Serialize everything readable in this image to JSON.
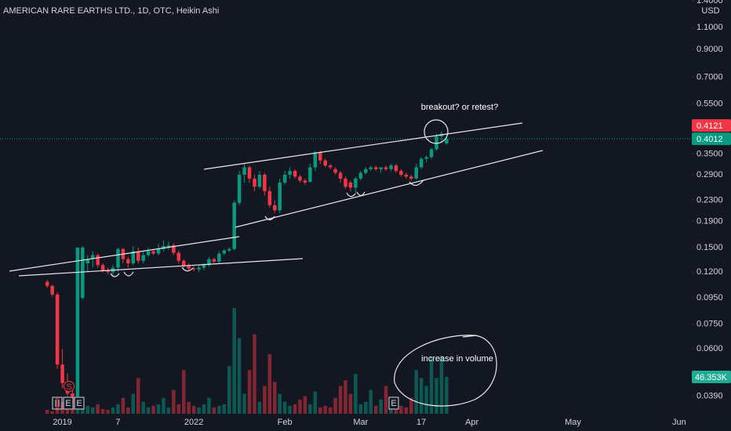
{
  "chart_data": {
    "type": "candlestick",
    "title": "AMERICAN RARE EARTHS LTD., 1D, OTC, Heikin Ashi",
    "currency": "USD",
    "log_scale": true,
    "grid": false,
    "up_color": "#089981",
    "down_color": "#f23645",
    "categories": [
      null,
      null,
      null,
      "2019",
      null,
      null,
      null,
      null,
      null,
      null,
      null,
      null,
      null,
      null,
      "7",
      null,
      null,
      null,
      null,
      null,
      null,
      null,
      null,
      null,
      null,
      null,
      null,
      null,
      null,
      "2022",
      null,
      null,
      null,
      null,
      null,
      null,
      null,
      null,
      null,
      null,
      null,
      null,
      null,
      null,
      null,
      null,
      null,
      "Feb",
      null,
      null,
      null,
      null,
      null,
      null,
      null,
      null,
      null,
      null,
      null,
      null,
      null,
      null,
      "Mar",
      null,
      null,
      null,
      null,
      null,
      null,
      null,
      null,
      null,
      null,
      null,
      "17",
      null,
      null,
      null,
      null,
      null,
      null,
      null,
      null,
      null,
      "Apr",
      null,
      null,
      null,
      null,
      null,
      null,
      null,
      null,
      null,
      null,
      null,
      null,
      null,
      null,
      null,
      null,
      null,
      null,
      null,
      "May",
      null,
      null,
      null,
      null,
      null,
      null,
      null,
      null,
      null,
      null,
      null,
      null,
      null,
      null,
      null,
      null,
      null,
      null,
      null,
      null,
      "Jun",
      null,
      null
    ],
    "open": [
      0.11,
      0.106,
      0.098,
      0.052,
      0.044,
      0.04,
      0.039,
      0.095,
      0.13,
      0.135,
      0.14,
      0.128,
      0.122,
      0.12,
      0.125,
      0.148,
      0.135,
      0.13,
      0.145,
      0.133,
      0.14,
      0.145,
      0.142,
      0.148,
      0.15,
      0.153,
      0.143,
      0.133,
      0.127,
      0.124,
      0.123,
      0.125,
      0.128,
      0.135,
      0.132,
      0.142,
      0.146,
      0.148,
      0.225,
      0.29,
      0.31,
      0.28,
      0.26,
      0.29,
      0.25,
      0.22,
      0.21,
      0.27,
      0.29,
      0.3,
      0.285,
      0.275,
      0.272,
      0.31,
      0.355,
      0.33,
      0.315,
      0.305,
      0.295,
      0.28,
      0.27,
      0.258,
      0.28,
      0.295,
      0.305,
      0.31,
      0.305,
      0.31,
      0.305,
      0.315,
      0.3,
      0.29,
      0.285,
      0.28,
      0.31,
      0.335,
      0.34,
      0.365,
      0.41,
      0.385,
      null,
      null,
      null,
      null,
      null,
      null,
      null,
      null,
      null,
      null,
      null,
      null,
      null,
      null,
      null,
      null,
      null,
      null,
      null,
      null,
      null,
      null,
      null,
      null,
      null,
      null,
      null,
      null,
      null,
      null,
      null,
      null,
      null,
      null,
      null,
      null,
      null,
      null,
      null,
      null,
      null,
      null,
      null,
      null,
      null,
      null,
      null,
      null
    ],
    "high": [
      0.112,
      0.107,
      0.1,
      0.06,
      0.048,
      0.042,
      0.15,
      0.152,
      0.14,
      0.145,
      0.142,
      0.13,
      0.125,
      0.128,
      0.15,
      0.15,
      0.138,
      0.152,
      0.15,
      0.145,
      0.15,
      0.148,
      0.155,
      0.16,
      0.158,
      0.156,
      0.146,
      0.135,
      0.13,
      0.127,
      0.128,
      0.13,
      0.138,
      0.137,
      0.145,
      0.148,
      0.15,
      0.23,
      0.3,
      0.32,
      0.315,
      0.29,
      0.3,
      0.295,
      0.26,
      0.23,
      0.28,
      0.3,
      0.31,
      0.305,
      0.29,
      0.28,
      0.32,
      0.36,
      0.36,
      0.335,
      0.32,
      0.31,
      0.3,
      0.285,
      0.275,
      0.285,
      0.3,
      0.31,
      0.315,
      0.315,
      0.31,
      0.315,
      0.32,
      0.32,
      0.305,
      0.295,
      0.29,
      0.32,
      0.34,
      0.345,
      0.37,
      0.42,
      0.43,
      0.415,
      null,
      null,
      null,
      null,
      null,
      null,
      null,
      null,
      null,
      null,
      null,
      null,
      null,
      null,
      null,
      null,
      null,
      null,
      null,
      null,
      null,
      null,
      null,
      null,
      null,
      null,
      null,
      null,
      null,
      null,
      null,
      null,
      null,
      null,
      null,
      null,
      null,
      null,
      null,
      null,
      null,
      null,
      null,
      null,
      null,
      null,
      null,
      null
    ],
    "low": [
      0.104,
      0.096,
      0.05,
      0.042,
      0.039,
      0.037,
      0.037,
      0.094,
      0.12,
      0.125,
      0.125,
      0.12,
      0.118,
      0.115,
      0.12,
      0.13,
      0.125,
      0.128,
      0.13,
      0.13,
      0.138,
      0.14,
      0.14,
      0.145,
      0.147,
      0.14,
      0.13,
      0.125,
      0.122,
      0.121,
      0.12,
      0.122,
      0.126,
      0.13,
      0.13,
      0.14,
      0.144,
      0.146,
      0.22,
      0.27,
      0.27,
      0.25,
      0.255,
      0.24,
      0.215,
      0.205,
      0.205,
      0.265,
      0.28,
      0.28,
      0.27,
      0.265,
      0.27,
      0.3,
      0.32,
      0.31,
      0.305,
      0.29,
      0.27,
      0.255,
      0.25,
      0.245,
      0.275,
      0.29,
      0.3,
      0.3,
      0.295,
      0.3,
      0.3,
      0.295,
      0.285,
      0.28,
      0.275,
      0.278,
      0.305,
      0.325,
      0.335,
      0.36,
      0.39,
      0.38,
      null,
      null,
      null,
      null,
      null,
      null,
      null,
      null,
      null,
      null,
      null,
      null,
      null,
      null,
      null,
      null,
      null,
      null,
      null,
      null,
      null,
      null,
      null,
      null,
      null,
      null,
      null,
      null,
      null,
      null,
      null,
      null,
      null,
      null,
      null,
      null,
      null,
      null,
      null,
      null,
      null,
      null,
      null,
      null,
      null,
      null,
      null,
      null
    ],
    "close": [
      0.106,
      0.098,
      0.052,
      0.044,
      0.04,
      0.039,
      0.15,
      0.15,
      0.135,
      0.14,
      0.128,
      0.122,
      0.12,
      0.125,
      0.148,
      0.135,
      0.13,
      0.145,
      0.133,
      0.14,
      0.145,
      0.142,
      0.148,
      0.152,
      0.153,
      0.143,
      0.133,
      0.127,
      0.124,
      0.123,
      0.125,
      0.128,
      0.135,
      0.132,
      0.142,
      0.146,
      0.148,
      0.225,
      0.29,
      0.31,
      0.28,
      0.26,
      0.29,
      0.25,
      0.22,
      0.21,
      0.27,
      0.29,
      0.3,
      0.285,
      0.275,
      0.27,
      0.31,
      0.355,
      0.33,
      0.315,
      0.31,
      0.295,
      0.28,
      0.26,
      0.258,
      0.28,
      0.295,
      0.305,
      0.31,
      0.305,
      0.31,
      0.305,
      0.315,
      0.3,
      0.29,
      0.285,
      0.28,
      0.31,
      0.335,
      0.34,
      0.365,
      0.41,
      0.42,
      0.4012,
      null,
      null,
      null,
      null,
      null,
      null,
      null,
      null,
      null,
      null,
      null,
      null,
      null,
      null,
      null,
      null,
      null,
      null,
      null,
      null,
      null,
      null,
      null,
      null,
      null,
      null,
      null,
      null,
      null,
      null,
      null,
      null,
      null,
      null,
      null,
      null,
      null,
      null,
      null,
      null,
      null,
      null,
      null,
      null,
      null,
      null,
      null,
      null
    ],
    "volume": [
      5000,
      3000,
      20000,
      15000,
      10000,
      25000,
      20000,
      6000,
      10000,
      8000,
      12000,
      6000,
      5000,
      8000,
      12000,
      20000,
      8000,
      25000,
      45000,
      15000,
      8000,
      10000,
      12000,
      20000,
      8000,
      30000,
      12000,
      55000,
      15000,
      10000,
      8000,
      12000,
      20000,
      8000,
      10000,
      12000,
      60000,
      133000,
      95000,
      25000,
      55000,
      100000,
      15000,
      35000,
      75000,
      40000,
      25000,
      15000,
      10000,
      12000,
      18000,
      22000,
      12000,
      28000,
      8000,
      10000,
      8000,
      20000,
      35000,
      42000,
      25000,
      50000,
      12000,
      15000,
      30000,
      10000,
      18000,
      35000,
      8000,
      5000,
      10000,
      8000,
      20000,
      55000,
      45000,
      35000,
      72000,
      45000,
      73000,
      46353,
      null,
      null,
      null,
      null,
      null,
      null,
      null,
      null,
      null,
      null,
      null,
      null,
      null,
      null,
      null,
      null,
      null,
      null,
      null,
      null,
      null,
      null,
      null,
      null,
      null,
      null,
      null,
      null,
      null,
      null,
      null,
      null,
      null,
      null,
      null,
      null,
      null,
      null,
      null,
      null,
      null,
      null,
      null,
      null,
      null,
      null,
      null,
      null
    ],
    "ylim": [
      0.0333,
      1.41
    ],
    "yticks": [
      {
        "value": 1.4,
        "label": "1.4000"
      },
      {
        "value": 1.1,
        "label": "1.1000"
      },
      {
        "value": 0.9,
        "label": "0.9000"
      },
      {
        "value": 0.7,
        "label": "0.7000"
      },
      {
        "value": 0.55,
        "label": "0.5500"
      },
      {
        "value": 0.35,
        "label": "0.3500"
      },
      {
        "value": 0.29,
        "label": "0.2900"
      },
      {
        "value": 0.23,
        "label": "0.2300"
      },
      {
        "value": 0.19,
        "label": "0.1900"
      },
      {
        "value": 0.15,
        "label": "0.1500"
      },
      {
        "value": 0.12,
        "label": "0.1200"
      },
      {
        "value": 0.095,
        "label": "0.0950"
      },
      {
        "value": 0.075,
        "label": "0.0750"
      },
      {
        "value": 0.06,
        "label": "0.0600"
      },
      {
        "value": 0.039,
        "label": "0.0390"
      }
    ],
    "price_labels": [
      {
        "value": 0.4121,
        "label": "0.4121",
        "color": "#f23645"
      },
      {
        "value": 0.4012,
        "label": "0.4012",
        "color": "#089981"
      }
    ],
    "volume_label": {
      "value": 46353,
      "label": "46.353K",
      "color": "#22ab94"
    },
    "events": [
      "E",
      "E",
      "E",
      "S"
    ],
    "annotations": [
      "breakout? or retest?",
      "increase in volume"
    ]
  }
}
